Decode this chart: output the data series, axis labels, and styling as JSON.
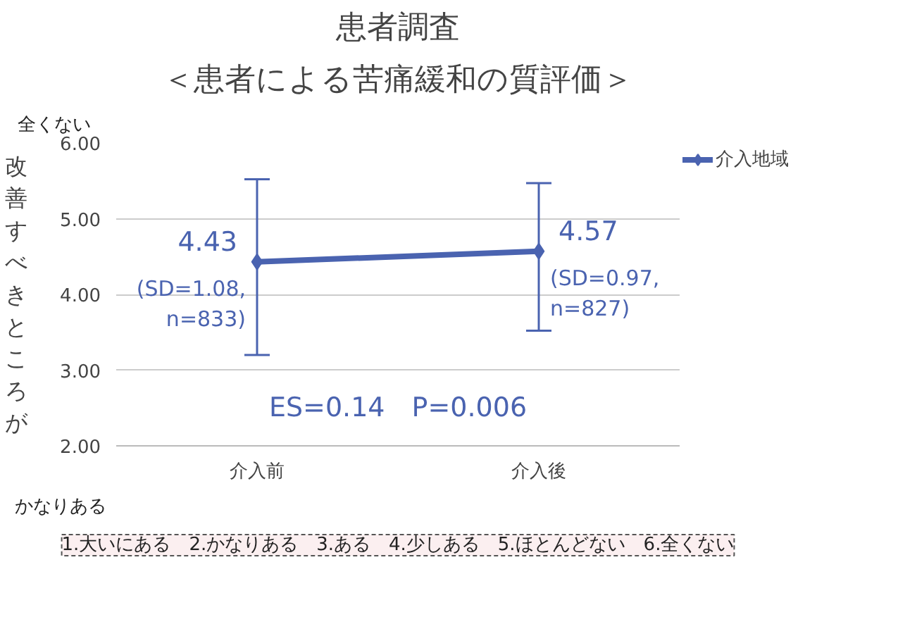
{
  "chart_data": {
    "type": "line",
    "title": "患者調査",
    "subtitle": "＜患者による苦痛緩和の質評価＞",
    "ylabel": "改善すべきところが",
    "categories": [
      "介入前",
      "介入後"
    ],
    "series": [
      {
        "name": "介入地域",
        "color": "#4a63b0",
        "values": [
          4.43,
          4.57
        ],
        "errors": [
          [
            3.2,
            5.52
          ],
          [
            3.52,
            5.47
          ]
        ],
        "value_labels": [
          "4.43",
          "4.57"
        ]
      }
    ],
    "ylim": [
      2,
      6
    ],
    "yticks": [
      {
        "value": 2,
        "label": "2.00"
      },
      {
        "value": 3,
        "label": "3.00"
      },
      {
        "value": 4,
        "label": "4.00"
      },
      {
        "value": 5,
        "label": "5.00"
      },
      {
        "value": 6,
        "label": "6.00"
      }
    ],
    "annotations": [
      {
        "text": "(SD=1.08,\nn=833)",
        "x": "介入前",
        "y": 4.43
      },
      {
        "text": "(SD=0.97,\nn=827)",
        "x": "介入後",
        "y": 4.57
      },
      "ES=0.14　P=0.006",
      "全くない",
      "かなりある",
      "1.大いにある　2.かなりある　3.ある　4.少しある　5.ほとんどない　6.全くない"
    ],
    "grid": "y",
    "legend": "right",
    "marker": "diamond",
    "line_style": "solid"
  }
}
